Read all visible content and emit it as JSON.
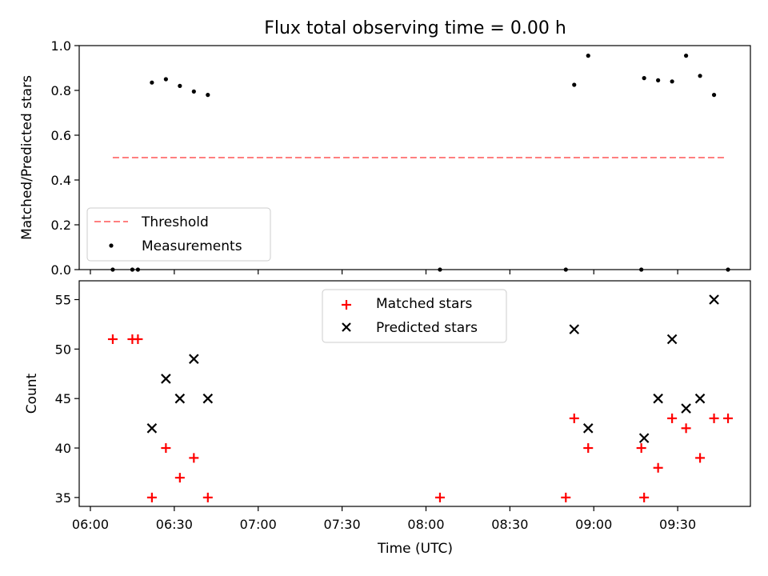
{
  "figure": {
    "title": "Flux total observing time = 0.00 h",
    "x_axis_label": "Time (UTC)"
  },
  "chart_data": [
    {
      "type": "scatter",
      "title": "Flux total observing time = 0.00 h",
      "xlabel": "",
      "ylabel": "Matched/Predicted stars",
      "ylim": [
        0.0,
        1.0
      ],
      "yticks": [
        "0.0",
        "0.2",
        "0.4",
        "0.6",
        "0.8",
        "1.0"
      ],
      "grid": false,
      "legend_position": "bottom-left",
      "series": [
        {
          "name": "Threshold",
          "kind": "dashed-line",
          "color": "#ff7f7f",
          "x": [
            "06:08",
            "09:47"
          ],
          "y": [
            0.5,
            0.5
          ]
        },
        {
          "name": "Measurements",
          "kind": "dot",
          "color": "#000000",
          "x": [
            "06:08",
            "06:15",
            "06:17",
            "06:22",
            "06:27",
            "06:32",
            "06:37",
            "06:42",
            "08:05",
            "08:50",
            "08:53",
            "08:58",
            "09:17",
            "09:18",
            "09:23",
            "09:28",
            "09:33",
            "09:38",
            "09:43",
            "09:48"
          ],
          "y": [
            0.0,
            0.0,
            0.0,
            0.835,
            0.85,
            0.82,
            0.795,
            0.78,
            0.0,
            0.0,
            0.825,
            0.955,
            0.0,
            0.855,
            0.845,
            0.84,
            0.955,
            0.865,
            0.78,
            0.0
          ]
        }
      ]
    },
    {
      "type": "scatter",
      "xlabel": "Time (UTC)",
      "ylabel": "Count",
      "ylim": [
        34.1,
        56.9
      ],
      "yticks": [
        "35",
        "40",
        "45",
        "50",
        "55"
      ],
      "xlim": [
        "05:56",
        "09:56"
      ],
      "xticks": [
        "06:00",
        "06:30",
        "07:00",
        "07:30",
        "08:00",
        "08:30",
        "09:00",
        "09:30"
      ],
      "grid": false,
      "legend_position": "top-center",
      "series": [
        {
          "name": "Matched stars",
          "marker": "plus",
          "color": "#ff0000",
          "x": [
            "06:08",
            "06:15",
            "06:17",
            "06:22",
            "06:27",
            "06:32",
            "06:37",
            "06:42",
            "08:05",
            "08:50",
            "08:53",
            "08:58",
            "09:17",
            "09:18",
            "09:23",
            "09:28",
            "09:33",
            "09:38",
            "09:43",
            "09:48"
          ],
          "y": [
            51,
            51,
            51,
            35,
            40,
            37,
            39,
            35,
            35,
            35,
            43,
            40,
            40,
            35,
            38,
            43,
            42,
            39,
            43,
            43
          ]
        },
        {
          "name": "Predicted stars",
          "marker": "x",
          "color": "#000000",
          "x": [
            "06:22",
            "06:27",
            "06:32",
            "06:37",
            "06:42",
            "08:53",
            "08:58",
            "09:18",
            "09:23",
            "09:28",
            "09:33",
            "09:38",
            "09:43"
          ],
          "y": [
            42,
            47,
            45,
            49,
            45,
            52,
            42,
            41,
            45,
            51,
            44,
            45,
            55
          ]
        }
      ]
    }
  ]
}
